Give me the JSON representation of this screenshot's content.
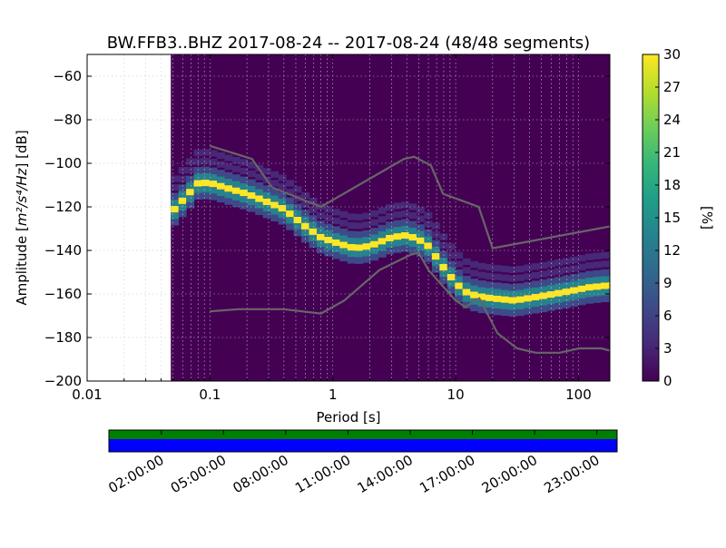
{
  "chart_data": {
    "type": "heatmap",
    "title": "BW.FFB3..BHZ   2017-08-24 -- 2017-08-24  (48/48 segments)",
    "xlabel": "Period [s]",
    "ylabel_prefix": "Amplitude [",
    "ylabel_math": "m²/s⁴/Hz",
    "ylabel_suffix": "] [dB]",
    "xscale": "log",
    "xlim": [
      0.01,
      180
    ],
    "ylim": [
      -200,
      -50
    ],
    "x_ticks": [
      {
        "value": 0.01,
        "label": "0.01"
      },
      {
        "value": 0.1,
        "label": "0.1"
      },
      {
        "value": 1,
        "label": "1"
      },
      {
        "value": 10,
        "label": "10"
      },
      {
        "value": 100,
        "label": "100"
      }
    ],
    "y_ticks": [
      {
        "value": -60,
        "label": "−60"
      },
      {
        "value": -80,
        "label": "−80"
      },
      {
        "value": -100,
        "label": "−100"
      },
      {
        "value": -120,
        "label": "−120"
      },
      {
        "value": -140,
        "label": "−140"
      },
      {
        "value": -160,
        "label": "−160"
      },
      {
        "value": -180,
        "label": "−180"
      },
      {
        "value": -200,
        "label": "−200"
      }
    ],
    "data_start_period": 0.048,
    "psd_mode": [
      [
        0.048,
        -123
      ],
      [
        0.06,
        -117
      ],
      [
        0.08,
        -109
      ],
      [
        0.1,
        -109
      ],
      [
        0.15,
        -112
      ],
      [
        0.2,
        -114
      ],
      [
        0.3,
        -118
      ],
      [
        0.4,
        -121
      ],
      [
        0.6,
        -129
      ],
      [
        0.8,
        -134
      ],
      [
        1.0,
        -136
      ],
      [
        1.5,
        -139
      ],
      [
        2.0,
        -138
      ],
      [
        3.0,
        -134
      ],
      [
        4.0,
        -133
      ],
      [
        5.0,
        -135
      ],
      [
        6.0,
        -138
      ],
      [
        8.0,
        -148
      ],
      [
        10.0,
        -155
      ],
      [
        12.0,
        -159
      ],
      [
        15.0,
        -161
      ],
      [
        20.0,
        -162
      ],
      [
        30.0,
        -163
      ],
      [
        50.0,
        -161
      ],
      [
        80.0,
        -159
      ],
      [
        120.0,
        -157
      ],
      [
        180.0,
        -156
      ]
    ],
    "psd_spread": [
      {
        "offset": -6,
        "level": 8
      },
      {
        "offset": -3,
        "level": 14
      },
      {
        "offset": 0,
        "level": 30
      },
      {
        "offset": 3,
        "level": 14
      },
      {
        "offset": 6,
        "level": 7
      },
      {
        "offset": 10,
        "level": 4
      },
      {
        "offset": 14,
        "level": 3
      }
    ],
    "noise_models": {
      "nhnm": [
        [
          0.1,
          -92
        ],
        [
          0.22,
          -98
        ],
        [
          0.32,
          -111
        ],
        [
          0.8,
          -120
        ],
        [
          3.8,
          -98
        ],
        [
          4.6,
          -97
        ],
        [
          6.3,
          -101
        ],
        [
          7.9,
          -114
        ],
        [
          15.4,
          -120
        ],
        [
          20,
          -139
        ],
        [
          180,
          -129
        ]
      ],
      "nlnm": [
        [
          0.1,
          -168
        ],
        [
          0.17,
          -167
        ],
        [
          0.4,
          -167
        ],
        [
          0.8,
          -169
        ],
        [
          1.24,
          -163
        ],
        [
          2.4,
          -149
        ],
        [
          4.3,
          -142
        ],
        [
          5,
          -141
        ],
        [
          6,
          -149
        ],
        [
          10,
          -163
        ],
        [
          12,
          -166
        ],
        [
          15.6,
          -162
        ],
        [
          21.9,
          -178
        ],
        [
          31.6,
          -185
        ],
        [
          45,
          -187
        ],
        [
          70,
          -187
        ],
        [
          101,
          -185
        ],
        [
          154,
          -185
        ],
        [
          180,
          -186
        ]
      ]
    },
    "colorbar": {
      "label": "[%]",
      "min": 0,
      "max": 30,
      "ticks": [
        "0",
        "3",
        "6",
        "9",
        "12",
        "15",
        "18",
        "21",
        "24",
        "27",
        "30"
      ],
      "colors": [
        "#440154",
        "#482878",
        "#3e4989",
        "#31688e",
        "#26828e",
        "#1f9e89",
        "#35b779",
        "#6ece58",
        "#b5de2b",
        "#fde725"
      ]
    },
    "coverage": {
      "time_ticks": [
        "02:00:00",
        "05:00:00",
        "08:00:00",
        "11:00:00",
        "14:00:00",
        "17:00:00",
        "20:00:00",
        "23:00:00"
      ],
      "data_color": "#008000",
      "used_color": "#0000ff"
    },
    "colors": {
      "background": "#440154",
      "noise_model": "#666666"
    }
  }
}
